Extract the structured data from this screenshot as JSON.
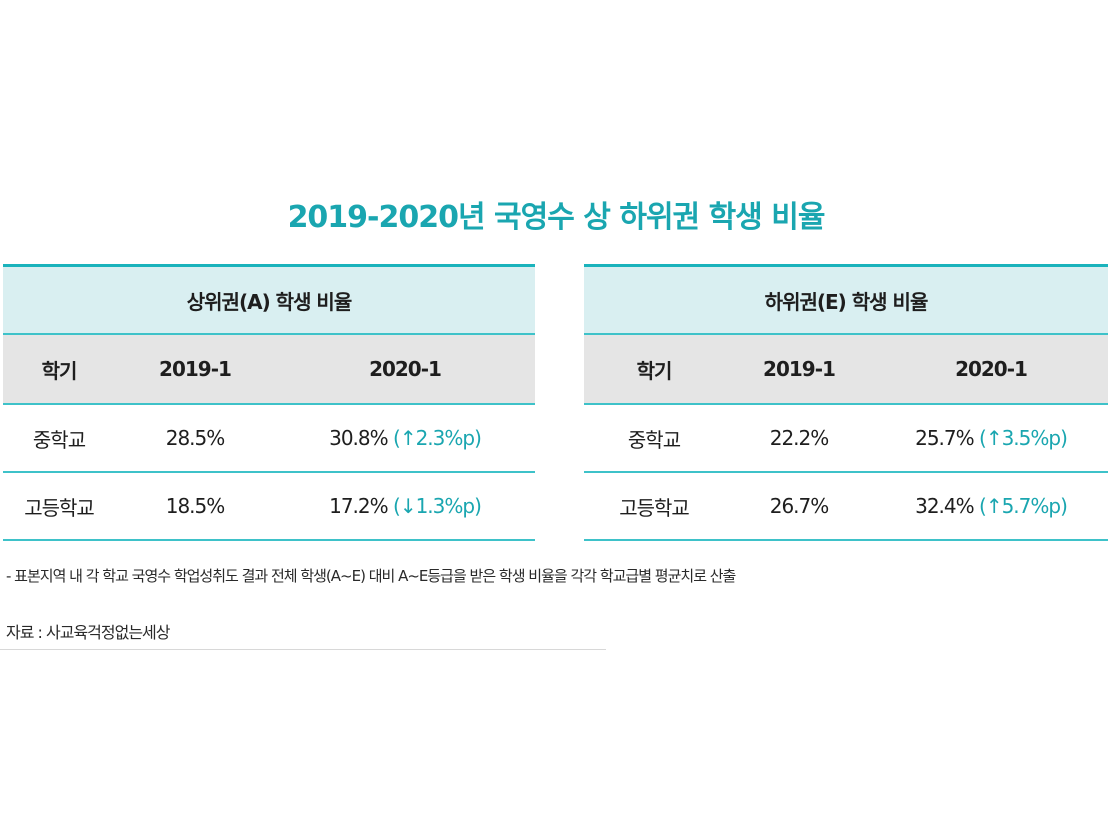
{
  "title": "2019-2020년 국영수 상 하위권 학생 비율",
  "tables": [
    {
      "group_header": "상위권(A) 학생 비율",
      "columns": [
        "학기",
        "2019-1",
        "2020-1"
      ],
      "rows": [
        {
          "label": "중학교",
          "v2019": "28.5%",
          "v2020": "30.8%",
          "change": "(↑2.3%p)"
        },
        {
          "label": "고등학교",
          "v2019": "18.5%",
          "v2020": "17.2%",
          "change": "(↓1.3%p)"
        }
      ]
    },
    {
      "group_header": "하위권(E) 학생 비율",
      "columns": [
        "학기",
        "2019-1",
        "2020-1"
      ],
      "rows": [
        {
          "label": "중학교",
          "v2019": "22.2%",
          "v2020": "25.7%",
          "change": "(↑3.5%p)"
        },
        {
          "label": "고등학교",
          "v2019": "26.7%",
          "v2020": "32.4%",
          "change": "(↑5.7%p)"
        }
      ]
    }
  ],
  "note": "- 표본지역 내 각 학교 국영수 학업성취도 결과 전체 학생(A~E) 대비 A~E등급을 받은 학생 비율을 각각 학교급별 평균치로 산출",
  "source": "자료 : 사교육걱정없는세상",
  "colors": {
    "accent": "#1aa6b0",
    "header_bg": "#d9eff1",
    "subheader_bg": "#e5e5e5"
  }
}
